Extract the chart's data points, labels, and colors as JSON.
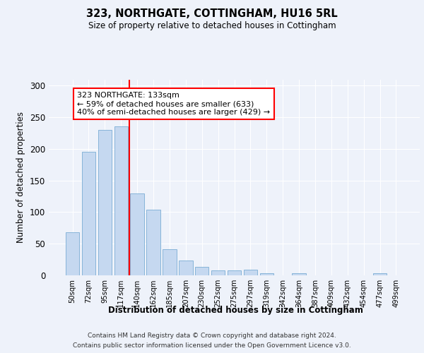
{
  "title": "323, NORTHGATE, COTTINGHAM, HU16 5RL",
  "subtitle": "Size of property relative to detached houses in Cottingham",
  "xlabel": "Distribution of detached houses by size in Cottingham",
  "ylabel": "Number of detached properties",
  "bar_color": "#c5d8f0",
  "bar_edge_color": "#7aadd4",
  "background_color": "#eef2fa",
  "grid_color": "#ffffff",
  "categories": [
    "50sqm",
    "72sqm",
    "95sqm",
    "117sqm",
    "140sqm",
    "162sqm",
    "185sqm",
    "207sqm",
    "230sqm",
    "252sqm",
    "275sqm",
    "297sqm",
    "319sqm",
    "342sqm",
    "364sqm",
    "387sqm",
    "409sqm",
    "432sqm",
    "454sqm",
    "477sqm",
    "499sqm"
  ],
  "values": [
    68,
    196,
    230,
    236,
    130,
    104,
    41,
    23,
    13,
    8,
    8,
    9,
    3,
    0,
    3,
    0,
    0,
    0,
    0,
    3,
    0
  ],
  "vline_x": 3.5,
  "annotation_text": "323 NORTHGATE: 133sqm\n← 59% of detached houses are smaller (633)\n40% of semi-detached houses are larger (429) →",
  "annotation_box_color": "white",
  "annotation_border_color": "red",
  "vline_color": "red",
  "ylim": [
    0,
    310
  ],
  "yticks": [
    0,
    50,
    100,
    150,
    200,
    250,
    300
  ],
  "footer_line1": "Contains HM Land Registry data © Crown copyright and database right 2024.",
  "footer_line2": "Contains public sector information licensed under the Open Government Licence v3.0."
}
